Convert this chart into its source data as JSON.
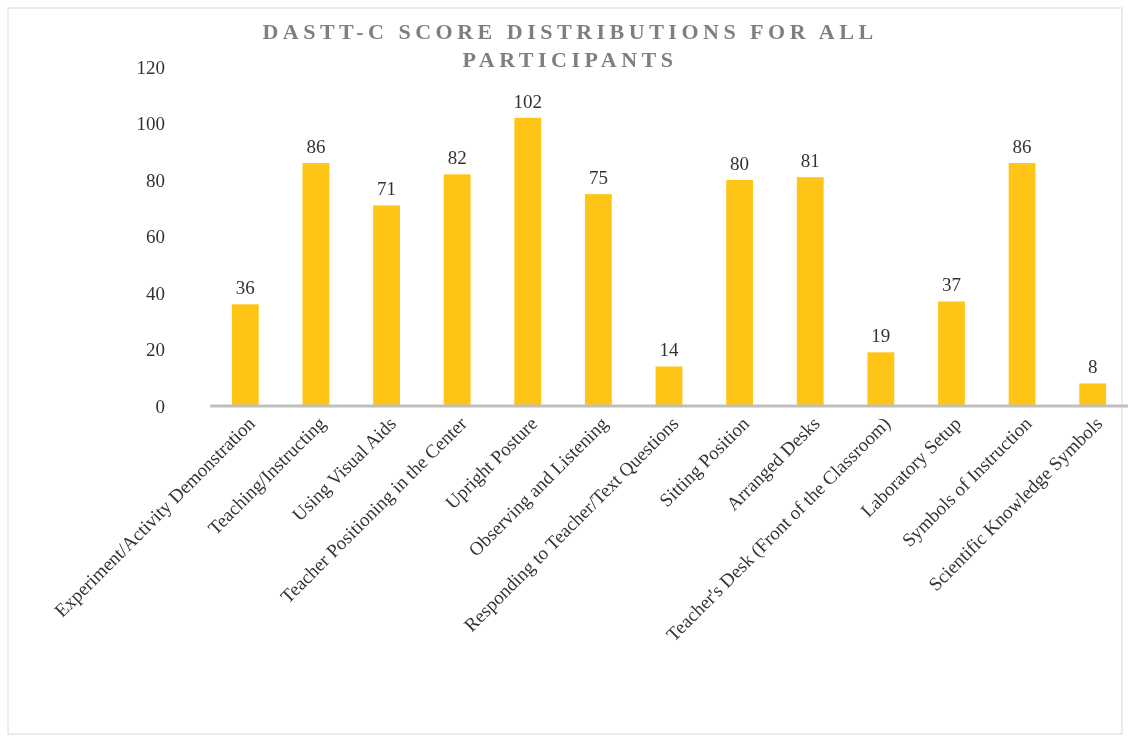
{
  "chart_data": {
    "type": "bar",
    "title": "DASTT-C SCORE DISTRIBUTIONS FOR ALL PARTICIPANTS",
    "categories": [
      "Experiment/Activity Demonstration",
      "Teaching/Instructing",
      "Using Visual Aids",
      "Teacher Positioning in the Center",
      "Upright Posture",
      "Observing and Listening",
      "Responding to Teacher/Text Questions",
      "Sitting Position",
      "Arranged Desks",
      "Teacher's Desk (Front of the Classroom)",
      "Laboratory Setup",
      "Symbols of Instruction",
      "Scientific Knowledge Symbols"
    ],
    "values": [
      36,
      86,
      71,
      82,
      102,
      75,
      14,
      80,
      81,
      19,
      37,
      86,
      8
    ],
    "color": "#ffc516",
    "ylim": [
      0,
      120
    ],
    "yticks": [
      0,
      20,
      40,
      60,
      80,
      100,
      120
    ],
    "data_labels": true,
    "grid": false
  }
}
